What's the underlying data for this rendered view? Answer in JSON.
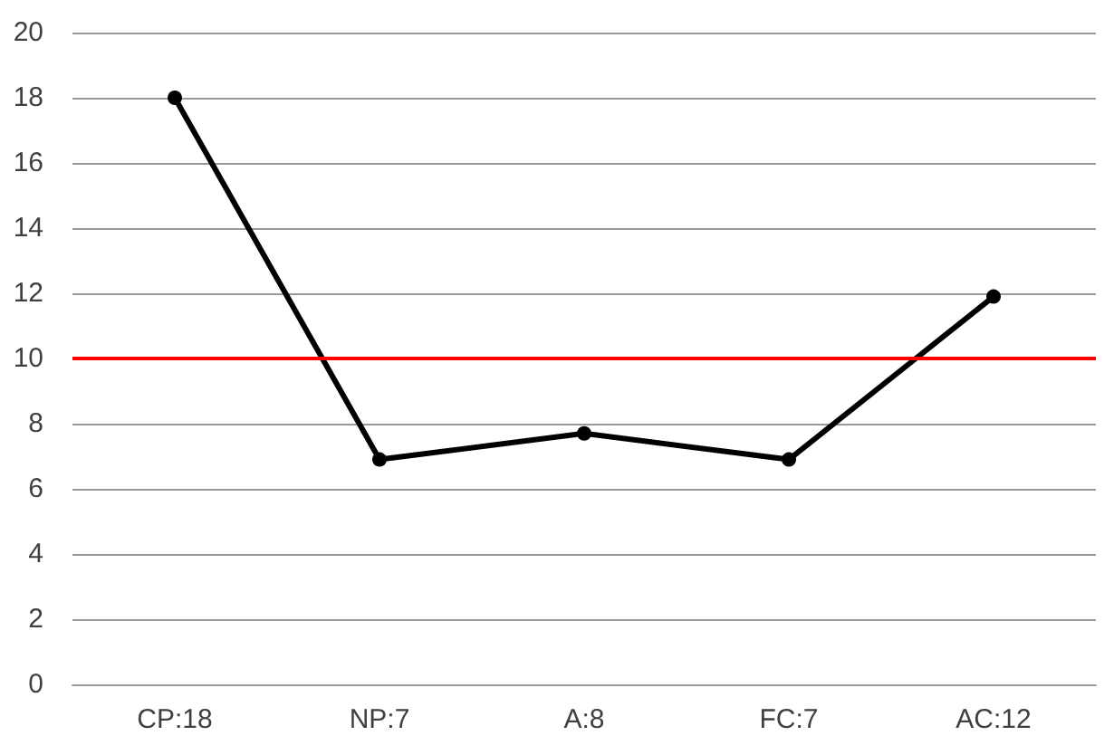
{
  "chart_data": {
    "type": "line",
    "categories": [
      "CP:18",
      "NP:7",
      "A:8",
      "FC:7",
      "AC:12"
    ],
    "series": [
      {
        "color": "#000000",
        "values": [
          18,
          6.9,
          7.7,
          6.9,
          11.9
        ]
      }
    ],
    "ylim": [
      0,
      20
    ],
    "yticks": [
      0,
      2,
      4,
      6,
      8,
      10,
      12,
      14,
      16,
      18,
      20
    ],
    "grid": "y",
    "marker": "circle",
    "line_style": "solid",
    "ref_lines": [
      {
        "axis": "y",
        "value": 10,
        "color": "#ff0000"
      }
    ]
  }
}
